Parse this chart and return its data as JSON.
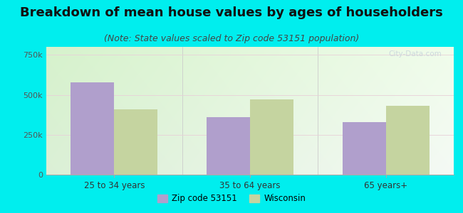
{
  "title": "Breakdown of mean house values by ages of householders",
  "subtitle": "(Note: State values scaled to Zip code 53151 population)",
  "categories": [
    "25 to 34 years",
    "35 to 64 years",
    "65 years+"
  ],
  "zip_values": [
    580000,
    360000,
    330000
  ],
  "state_values": [
    410000,
    470000,
    430000
  ],
  "zip_color": "#b09fcc",
  "state_color": "#c5d4a0",
  "ylim": [
    0,
    800000
  ],
  "yticks": [
    0,
    250000,
    500000,
    750000
  ],
  "ytick_labels": [
    "0",
    "250k",
    "500k",
    "750k"
  ],
  "background_color": "#00eeee",
  "legend_zip_label": "Zip code 53151",
  "legend_state_label": "Wisconsin",
  "bar_width": 0.32,
  "title_fontsize": 13,
  "subtitle_fontsize": 9
}
